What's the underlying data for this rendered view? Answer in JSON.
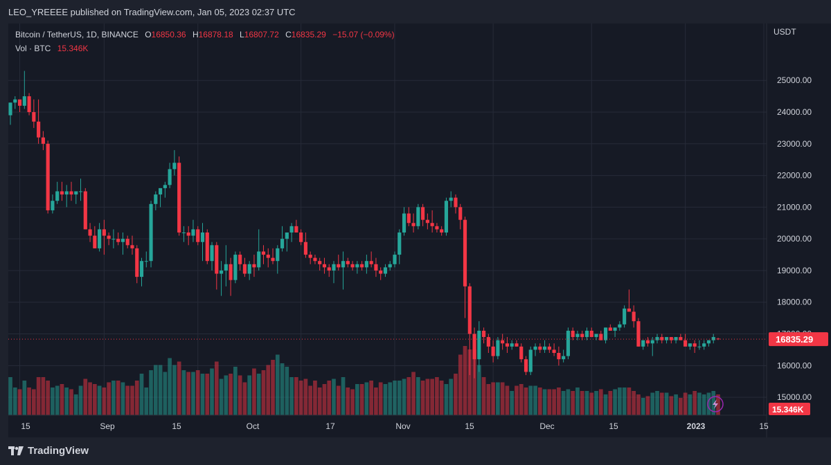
{
  "header": {
    "published_text": "LEO_YREEEE published on TradingView.com, Jan 05, 2023 02:37 UTC"
  },
  "legend": {
    "symbol": "Bitcoin / TetherUS, 1D, BINANCE",
    "o_label": "O",
    "o_value": "16850.36",
    "h_label": "H",
    "h_value": "16878.18",
    "l_label": "L",
    "l_value": "16807.72",
    "c_label": "C",
    "c_value": "16835.29",
    "change": "−15.07 (−0.09%)",
    "vol_label": "Vol · BTC",
    "vol_value": "15.346K"
  },
  "footer": {
    "brand": "TradingView"
  },
  "colors": {
    "up": "#26a69a",
    "down": "#f23645",
    "background": "#161a25",
    "grid": "#262b38"
  },
  "chart_data": {
    "type": "candlestick",
    "y_axis_unit": "USDT",
    "y_ticks": [
      "25000.00",
      "24000.00",
      "23000.00",
      "22000.00",
      "21000.00",
      "20000.00",
      "19000.00",
      "18000.00",
      "17000.00",
      "16000.00",
      "15000.00"
    ],
    "ylim": [
      14500,
      25900
    ],
    "x_ticks": [
      "15",
      "Sep",
      "15",
      "Oct",
      "17",
      "Nov",
      "15",
      "Dec",
      "15",
      "2023",
      "15"
    ],
    "last_price_label": "16835.29",
    "last_volume_label": "15.346K",
    "grid": true,
    "series": [
      {
        "name": "price",
        "values": [
          [
            23900,
            24300,
            23600,
            24300
          ],
          [
            24300,
            24500,
            24100,
            24400
          ],
          [
            24400,
            24300,
            24000,
            24200
          ],
          [
            24200,
            25300,
            24100,
            24500
          ],
          [
            24500,
            24600,
            23900,
            24000
          ],
          [
            24000,
            24400,
            23500,
            23700
          ],
          [
            23700,
            24400,
            23000,
            23200
          ],
          [
            23200,
            23400,
            22800,
            23000
          ],
          [
            23000,
            23100,
            20800,
            20900
          ],
          [
            20900,
            21400,
            20800,
            21200
          ],
          [
            21200,
            21800,
            21100,
            21500
          ],
          [
            21500,
            21800,
            21200,
            21400
          ],
          [
            21400,
            21700,
            21000,
            21500
          ],
          [
            21500,
            21800,
            21200,
            21400
          ],
          [
            21400,
            21500,
            21100,
            21500
          ],
          [
            21500,
            21900,
            21200,
            21500
          ],
          [
            21500,
            21600,
            20300,
            20300
          ],
          [
            20300,
            20500,
            19900,
            20100
          ],
          [
            20100,
            20400,
            19700,
            19700
          ],
          [
            19700,
            20500,
            19600,
            20300
          ],
          [
            20300,
            20600,
            19500,
            20100
          ],
          [
            20100,
            20200,
            19800,
            20000
          ],
          [
            20000,
            20300,
            19700,
            20000
          ],
          [
            20000,
            20200,
            19800,
            19900
          ],
          [
            19900,
            20200,
            19500,
            20000
          ],
          [
            20000,
            20100,
            19700,
            19800
          ],
          [
            19800,
            20100,
            19500,
            19700
          ],
          [
            19700,
            19800,
            18600,
            18800
          ],
          [
            18800,
            19400,
            18500,
            19300
          ],
          [
            19300,
            19600,
            19100,
            19300
          ],
          [
            19300,
            21200,
            19100,
            21100
          ],
          [
            21100,
            21500,
            20900,
            21400
          ],
          [
            21400,
            21600,
            21000,
            21600
          ],
          [
            21600,
            21800,
            21300,
            21700
          ],
          [
            21700,
            22400,
            21600,
            22200
          ],
          [
            22200,
            22800,
            22000,
            22400
          ],
          [
            22400,
            22600,
            20100,
            20200
          ],
          [
            20200,
            20400,
            19900,
            20200
          ],
          [
            20200,
            20400,
            19800,
            20100
          ],
          [
            20100,
            20600,
            19900,
            20300
          ],
          [
            20300,
            20400,
            19800,
            19900
          ],
          [
            19900,
            20500,
            19300,
            20200
          ],
          [
            20200,
            20300,
            19200,
            19300
          ],
          [
            19300,
            19900,
            19000,
            19800
          ],
          [
            19800,
            19900,
            18400,
            18900
          ],
          [
            18900,
            19300,
            18200,
            19000
          ],
          [
            19000,
            19800,
            18500,
            19200
          ],
          [
            19200,
            19400,
            18200,
            18700
          ],
          [
            18700,
            19600,
            18600,
            19500
          ],
          [
            19500,
            19600,
            19000,
            19200
          ],
          [
            19200,
            19400,
            18800,
            18900
          ],
          [
            18900,
            19300,
            18700,
            19200
          ],
          [
            19200,
            19500,
            18800,
            19100
          ],
          [
            19100,
            20300,
            19000,
            19600
          ],
          [
            19600,
            19800,
            19200,
            19500
          ],
          [
            19500,
            19700,
            19100,
            19400
          ],
          [
            19400,
            19700,
            19200,
            19300
          ],
          [
            19300,
            19800,
            18900,
            19700
          ],
          [
            19700,
            20400,
            19600,
            20000
          ],
          [
            20000,
            20100,
            19600,
            20200
          ],
          [
            20200,
            20500,
            19900,
            20400
          ],
          [
            20400,
            20600,
            20200,
            20200
          ],
          [
            20200,
            20300,
            19800,
            19900
          ],
          [
            19900,
            20200,
            19400,
            19500
          ],
          [
            19500,
            19600,
            19200,
            19400
          ],
          [
            19400,
            19500,
            19200,
            19300
          ],
          [
            19300,
            19400,
            19000,
            19200
          ],
          [
            19200,
            19400,
            18900,
            19100
          ],
          [
            19100,
            19200,
            18800,
            19000
          ],
          [
            19000,
            19300,
            18600,
            19200
          ],
          [
            19200,
            19500,
            19000,
            19100
          ],
          [
            19100,
            19600,
            18400,
            19300
          ],
          [
            19300,
            19400,
            19100,
            19200
          ],
          [
            19200,
            19300,
            19000,
            19100
          ],
          [
            19100,
            19300,
            18900,
            19200
          ],
          [
            19200,
            19300,
            19000,
            19100
          ],
          [
            19100,
            19500,
            18900,
            19300
          ],
          [
            19300,
            19600,
            19100,
            19200
          ],
          [
            19200,
            19400,
            18800,
            19000
          ],
          [
            19000,
            19100,
            18700,
            18900
          ],
          [
            18900,
            19200,
            18800,
            19100
          ],
          [
            19100,
            19300,
            19000,
            19200
          ],
          [
            19200,
            19600,
            19100,
            19500
          ],
          [
            19500,
            20300,
            19200,
            20200
          ],
          [
            20200,
            21000,
            20100,
            20800
          ],
          [
            20800,
            21000,
            20400,
            20500
          ],
          [
            20500,
            20800,
            20200,
            20400
          ],
          [
            20400,
            21100,
            20300,
            21000
          ],
          [
            21000,
            21100,
            20400,
            20600
          ],
          [
            20600,
            20800,
            20300,
            20500
          ],
          [
            20500,
            20900,
            20200,
            20400
          ],
          [
            20400,
            20500,
            20200,
            20300
          ],
          [
            20300,
            20400,
            20100,
            20200
          ],
          [
            20200,
            21300,
            20100,
            21200
          ],
          [
            21200,
            21500,
            21000,
            21300
          ],
          [
            21300,
            21400,
            20800,
            21000
          ],
          [
            21000,
            21100,
            20300,
            20600
          ],
          [
            20600,
            20700,
            17500,
            18500
          ],
          [
            18500,
            18600,
            15700,
            17000
          ],
          [
            17000,
            17200,
            15600,
            16200
          ],
          [
            16200,
            17400,
            15800,
            17100
          ],
          [
            17100,
            17200,
            16700,
            16900
          ],
          [
            16900,
            17000,
            16400,
            16600
          ],
          [
            16600,
            16800,
            16100,
            16300
          ],
          [
            16300,
            16900,
            16200,
            16800
          ],
          [
            16800,
            17000,
            16500,
            16700
          ],
          [
            16700,
            16900,
            16400,
            16600
          ],
          [
            16600,
            16800,
            16500,
            16700
          ],
          [
            16700,
            16800,
            16600,
            16600
          ],
          [
            16600,
            16700,
            16100,
            16200
          ],
          [
            16200,
            16300,
            15700,
            15800
          ],
          [
            15800,
            16600,
            15700,
            16500
          ],
          [
            16500,
            16700,
            16300,
            16600
          ],
          [
            16600,
            16700,
            16400,
            16500
          ],
          [
            16500,
            16800,
            16400,
            16600
          ],
          [
            16600,
            16700,
            16400,
            16500
          ],
          [
            16500,
            16700,
            16300,
            16400
          ],
          [
            16400,
            16600,
            16000,
            16200
          ],
          [
            16200,
            16500,
            16100,
            16300
          ],
          [
            16300,
            17200,
            16200,
            17100
          ],
          [
            17100,
            17200,
            16800,
            16900
          ],
          [
            16900,
            17100,
            16800,
            17000
          ],
          [
            17000,
            17100,
            16800,
            16900
          ],
          [
            16900,
            17200,
            16800,
            17100
          ],
          [
            17100,
            17200,
            16900,
            16900
          ],
          [
            16900,
            17000,
            16800,
            17000
          ],
          [
            17000,
            17100,
            16800,
            16800
          ],
          [
            16800,
            17200,
            16700,
            17200
          ],
          [
            17200,
            17300,
            17100,
            17100
          ],
          [
            17100,
            17200,
            16900,
            17200
          ],
          [
            17200,
            17400,
            17100,
            17300
          ],
          [
            17300,
            17900,
            17200,
            17800
          ],
          [
            17800,
            18400,
            17700,
            17700
          ],
          [
            17700,
            17900,
            17200,
            17400
          ],
          [
            17400,
            17500,
            16600,
            16600
          ],
          [
            16600,
            16800,
            16500,
            16800
          ],
          [
            16800,
            16900,
            16600,
            16700
          ],
          [
            16700,
            16900,
            16300,
            16800
          ],
          [
            16800,
            17000,
            16700,
            16900
          ],
          [
            16900,
            17000,
            16700,
            16800
          ],
          [
            16800,
            16900,
            16700,
            16900
          ],
          [
            16900,
            16900,
            16700,
            16800
          ],
          [
            16800,
            16900,
            16700,
            16900
          ],
          [
            16900,
            17000,
            16800,
            16800
          ],
          [
            16800,
            17000,
            16700,
            16600
          ],
          [
            16600,
            16700,
            16500,
            16700
          ],
          [
            16700,
            16800,
            16400,
            16600
          ],
          [
            16600,
            16800,
            16500,
            16600
          ],
          [
            16600,
            16800,
            16500,
            16700
          ],
          [
            16700,
            16800,
            16600,
            16800
          ],
          [
            16800,
            17000,
            16700,
            16900
          ],
          [
            16850.36,
            16878.18,
            16807.72,
            16835.29
          ]
        ]
      },
      {
        "name": "volume",
        "values": [
          220,
          160,
          150,
          200,
          160,
          150,
          220,
          220,
          200,
          160,
          170,
          180,
          160,
          150,
          120,
          170,
          210,
          190,
          180,
          170,
          160,
          190,
          200,
          200,
          190,
          170,
          170,
          200,
          240,
          160,
          260,
          290,
          290,
          250,
          330,
          290,
          310,
          260,
          250,
          250,
          260,
          240,
          240,
          270,
          310,
          210,
          230,
          240,
          280,
          230,
          190,
          230,
          270,
          240,
          260,
          290,
          320,
          350,
          300,
          280,
          220,
          220,
          200,
          210,
          170,
          200,
          160,
          180,
          200,
          210,
          170,
          220,
          160,
          150,
          180,
          180,
          190,
          200,
          160,
          190,
          180,
          190,
          200,
          200,
          210,
          220,
          250,
          220,
          200,
          210,
          210,
          220,
          200,
          180,
          210,
          240,
          350,
          400,
          380,
          380,
          290,
          220,
          180,
          190,
          190,
          190,
          170,
          140,
          170,
          180,
          160,
          170,
          170,
          160,
          150,
          150,
          150,
          160,
          140,
          150,
          140,
          160,
          140,
          140,
          130,
          140,
          150,
          120,
          140,
          150,
          160,
          160,
          160,
          140,
          120,
          100,
          110,
          130,
          140,
          130,
          130,
          110,
          120,
          100,
          130,
          120,
          140,
          130,
          120,
          130,
          140,
          120
        ]
      }
    ]
  }
}
